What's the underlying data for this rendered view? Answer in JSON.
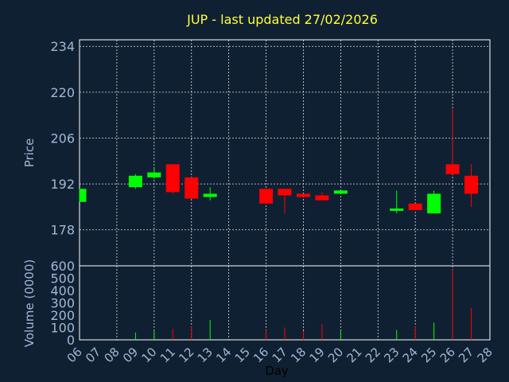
{
  "chart_data": {
    "type": "candlestick",
    "title": "JUP - last updated 27/02/2026",
    "xlabel": "Day",
    "price_ylabel": "Price",
    "volume_ylabel": "Volume (0000)",
    "price_ylim": [
      167,
      236
    ],
    "price_ticks": [
      178,
      192,
      206,
      220,
      234
    ],
    "volume_ylim": [
      0,
      600
    ],
    "volume_ticks": [
      0,
      100,
      200,
      300,
      400,
      500,
      600
    ],
    "x_ticks": [
      "06",
      "07",
      "08",
      "09",
      "10",
      "11",
      "12",
      "13",
      "14",
      "15",
      "16",
      "17",
      "18",
      "19",
      "20",
      "21",
      "22",
      "23",
      "24",
      "25",
      "26",
      "27",
      "28"
    ],
    "grid": true,
    "colors": {
      "up": "#00ff00",
      "down": "#ff0000",
      "grid": "#ffffff",
      "axis": "#9fb8d4",
      "title": "#ffff3a",
      "background": "#102033"
    },
    "candles": [
      {
        "day": "06",
        "open": 186.5,
        "close": 190.5,
        "high": 190.5,
        "low": 186.5,
        "volume": 0
      },
      {
        "day": "09",
        "open": 191.0,
        "close": 194.5,
        "high": 195.0,
        "low": 190.5,
        "volume": 60
      },
      {
        "day": "10",
        "open": 194.0,
        "close": 195.5,
        "high": 197.0,
        "low": 193.5,
        "volume": 70
      },
      {
        "day": "11",
        "open": 198.0,
        "close": 189.5,
        "high": 198.0,
        "low": 189.0,
        "volume": 90
      },
      {
        "day": "12",
        "open": 194.0,
        "close": 187.5,
        "high": 194.0,
        "low": 187.5,
        "volume": 110
      },
      {
        "day": "13",
        "open": 188.0,
        "close": 189.0,
        "high": 191.0,
        "low": 187.0,
        "volume": 160
      },
      {
        "day": "16",
        "open": 190.5,
        "close": 186.0,
        "high": 190.5,
        "low": 186.0,
        "volume": 80
      },
      {
        "day": "17",
        "open": 190.5,
        "close": 188.5,
        "high": 190.5,
        "low": 183.0,
        "volume": 100
      },
      {
        "day": "18",
        "open": 189.0,
        "close": 188.0,
        "high": 189.0,
        "low": 188.0,
        "volume": 70
      },
      {
        "day": "19",
        "open": 188.5,
        "close": 187.0,
        "high": 189.5,
        "low": 187.0,
        "volume": 130
      },
      {
        "day": "20",
        "open": 189.0,
        "close": 190.0,
        "high": 190.0,
        "low": 189.0,
        "volume": 70
      },
      {
        "day": "23",
        "open": 184.0,
        "close": 184.5,
        "high": 190.0,
        "low": 183.0,
        "volume": 80
      },
      {
        "day": "24",
        "open": 186.0,
        "close": 184.0,
        "high": 186.0,
        "low": 184.0,
        "volume": 110
      },
      {
        "day": "25",
        "open": 183.0,
        "close": 189.0,
        "high": 190.0,
        "low": 183.0,
        "volume": 140
      },
      {
        "day": "26",
        "open": 198.0,
        "close": 195.0,
        "high": 215.0,
        "low": 195.0,
        "volume": 570
      },
      {
        "day": "27",
        "open": 194.5,
        "close": 189.0,
        "high": 198.0,
        "low": 185.0,
        "volume": 260
      }
    ]
  }
}
